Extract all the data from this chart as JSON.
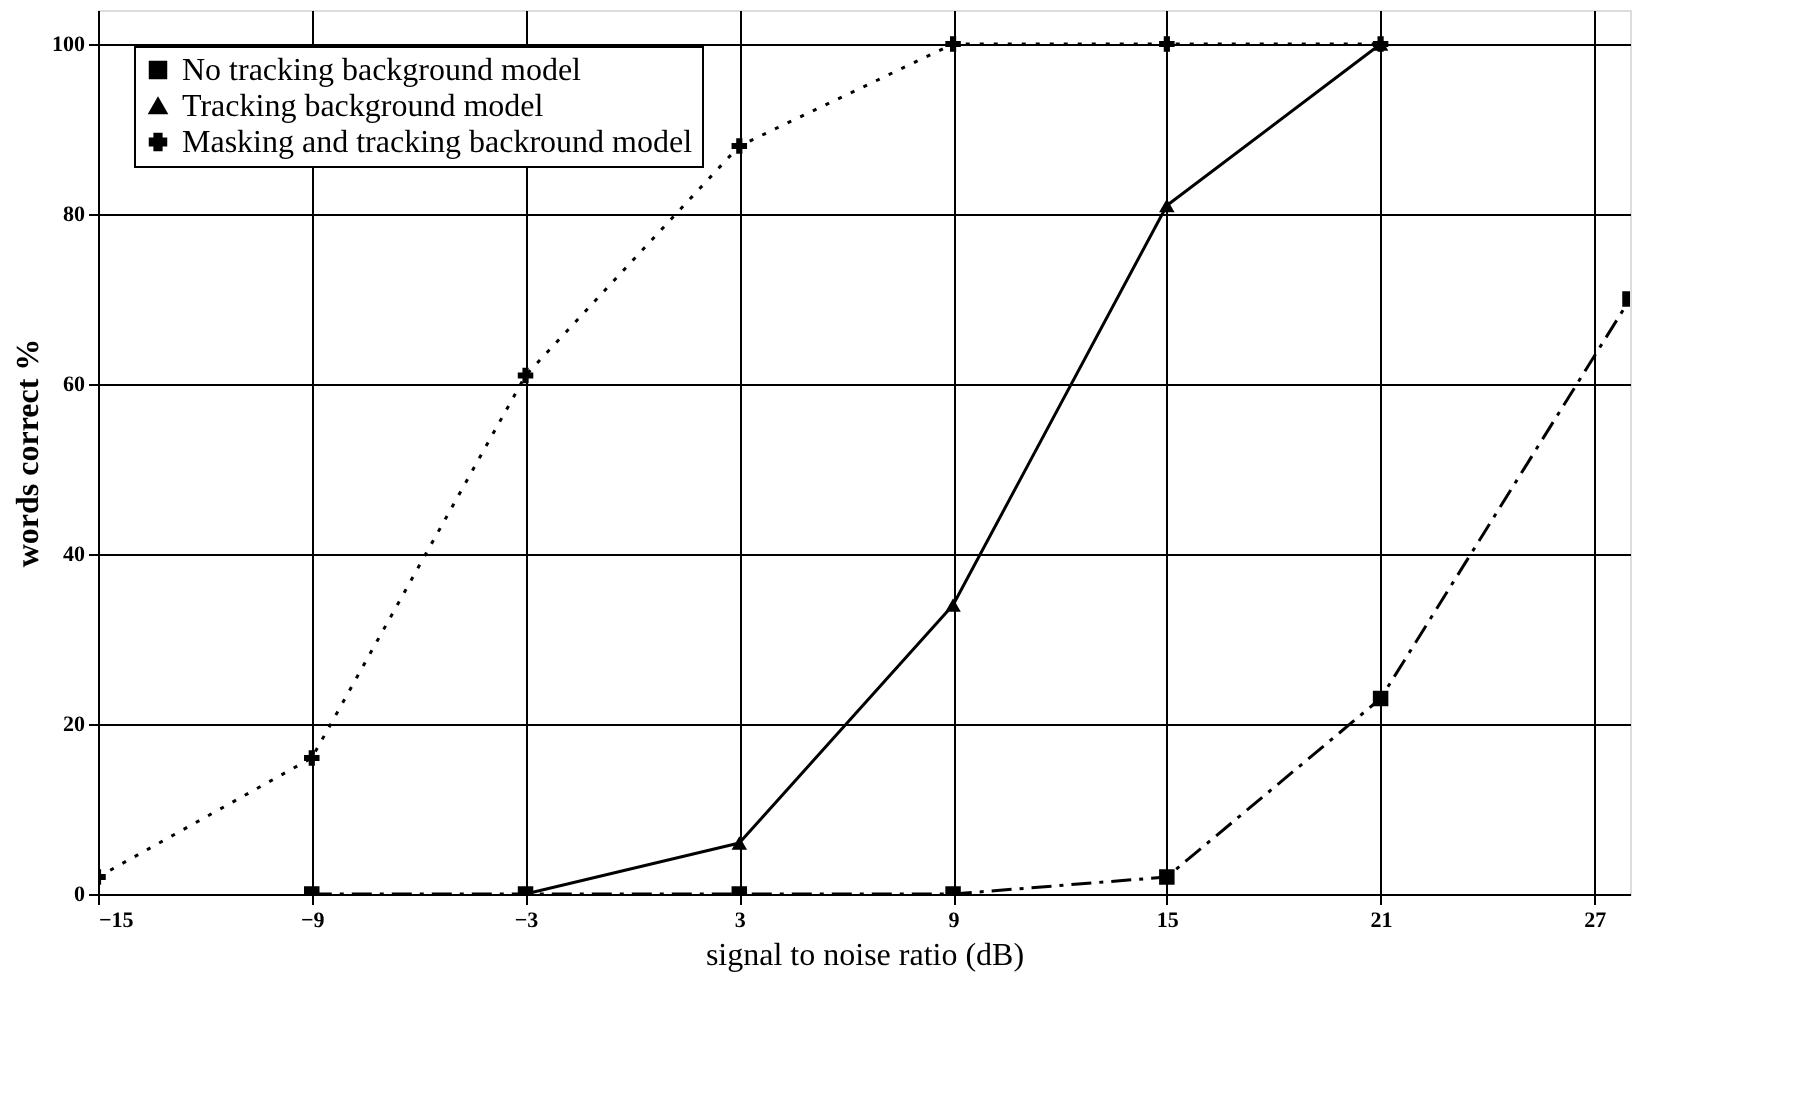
{
  "chart_data": {
    "type": "line",
    "xlabel": "signal to noise ratio (dB)",
    "ylabel": "words correct %",
    "xlim": [
      -15,
      28
    ],
    "ylim": [
      0,
      104
    ],
    "xticks": [
      -15,
      -9,
      -3,
      3,
      9,
      15,
      21,
      27
    ],
    "yticks": [
      0,
      20,
      40,
      60,
      80,
      100
    ],
    "grid": true,
    "legend": "top left",
    "series": [
      {
        "name": "No tracking background model",
        "color": "#000000",
        "marker": "square",
        "line_style": "dashed",
        "x": [
          -9,
          -3,
          3,
          9,
          15,
          21,
          28
        ],
        "values": [
          0,
          0,
          0,
          0,
          2,
          23,
          70
        ]
      },
      {
        "name": "Tracking background model",
        "color": "#000000",
        "marker": "triangle",
        "line_style": "solid",
        "x": [
          -3,
          3,
          9,
          15,
          21
        ],
        "values": [
          0,
          6,
          34,
          81,
          100
        ]
      },
      {
        "name": "Masking and tracking backround model",
        "color": "#000000",
        "marker": "cross",
        "line_style": "dotted",
        "x": [
          -15,
          -9,
          -3,
          3,
          9,
          15,
          21
        ],
        "values": [
          2,
          16,
          61,
          88,
          100,
          100,
          100
        ]
      }
    ]
  }
}
